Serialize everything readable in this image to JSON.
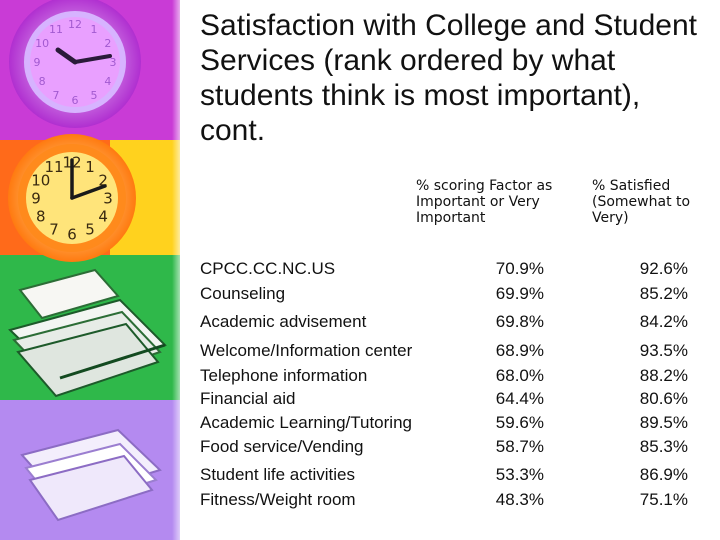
{
  "title": "Satisfaction with College and Student Services (rank ordered by what students think is most important), cont.",
  "columns": {
    "factor": "% scoring Factor as Important or Very Important",
    "satisfied": "% Satisfied (Somewhat to Very)"
  },
  "rows": [
    {
      "service": "CPCC.CC.NC.US",
      "important": "70.9%",
      "satisfied": "92.6%"
    },
    {
      "service": "Counseling",
      "important": "69.9%",
      "satisfied": "85.2%"
    },
    {
      "service": "Academic advisement",
      "important": "69.8%",
      "satisfied": "84.2%"
    },
    {
      "service": "Welcome/Information center",
      "important": "68.9%",
      "satisfied": "93.5%"
    },
    {
      "service": "Telephone information",
      "important": "68.0%",
      "satisfied": "88.2%"
    },
    {
      "service": "Financial aid",
      "important": "64.4%",
      "satisfied": "80.6%"
    },
    {
      "service": "Academic Learning/Tutoring",
      "important": "59.6%",
      "satisfied": "89.5%"
    },
    {
      "service": "Food service/Vending",
      "important": "58.7%",
      "satisfied": "85.3%"
    },
    {
      "service": "Student life activities",
      "important": "53.3%",
      "satisfied": "86.9%"
    },
    {
      "service": "Fitness/Weight room",
      "important": "48.3%",
      "satisfied": "75.1%"
    }
  ],
  "decor": {
    "clock_top_face": "#e9a0ff",
    "clock_bottom_face": "#ffe47a",
    "strip_colors": [
      "#c93bd6",
      "#ff6a1a",
      "#ffd21e",
      "#2fb84a",
      "#b48af0"
    ],
    "clock_numerals": [
      "12",
      "1",
      "2",
      "3",
      "4",
      "5",
      "6",
      "7",
      "8",
      "9",
      "10",
      "11"
    ]
  }
}
